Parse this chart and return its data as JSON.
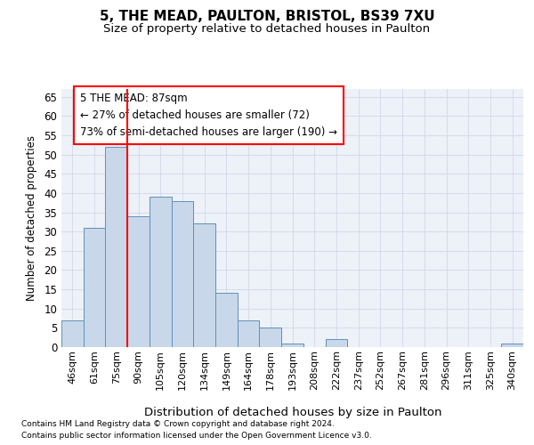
{
  "title1": "5, THE MEAD, PAULTON, BRISTOL, BS39 7XU",
  "title2": "Size of property relative to detached houses in Paulton",
  "xlabel": "Distribution of detached houses by size in Paulton",
  "ylabel": "Number of detached properties",
  "categories": [
    "46sqm",
    "61sqm",
    "75sqm",
    "90sqm",
    "105sqm",
    "120sqm",
    "134sqm",
    "149sqm",
    "164sqm",
    "178sqm",
    "193sqm",
    "208sqm",
    "222sqm",
    "237sqm",
    "252sqm",
    "267sqm",
    "281sqm",
    "296sqm",
    "311sqm",
    "325sqm",
    "340sqm"
  ],
  "values": [
    7,
    31,
    52,
    34,
    39,
    38,
    32,
    14,
    7,
    5,
    1,
    0,
    2,
    0,
    0,
    0,
    0,
    0,
    0,
    0,
    1
  ],
  "bar_color": "#c8d8ea",
  "bar_edge_color": "#6090b8",
  "red_line_x": 2.5,
  "ylim": [
    0,
    67
  ],
  "yticks": [
    0,
    5,
    10,
    15,
    20,
    25,
    30,
    35,
    40,
    45,
    50,
    55,
    60,
    65
  ],
  "annotation_line1": "5 THE MEAD: 87sqm",
  "annotation_line2": "← 27% of detached houses are smaller (72)",
  "annotation_line3": "73% of semi-detached houses are larger (190) →",
  "footer_line1": "Contains HM Land Registry data © Crown copyright and database right 2024.",
  "footer_line2": "Contains public sector information licensed under the Open Government Licence v3.0.",
  "grid_color": "#d0d8e8",
  "background_color": "#edf1f8",
  "title1_fontsize": 11,
  "title2_fontsize": 9.5,
  "ylabel_fontsize": 8.5,
  "xlabel_fontsize": 9.5,
  "ytick_fontsize": 8.5,
  "xtick_fontsize": 8,
  "annot_fontsize": 8.5,
  "footer_fontsize": 6.5
}
